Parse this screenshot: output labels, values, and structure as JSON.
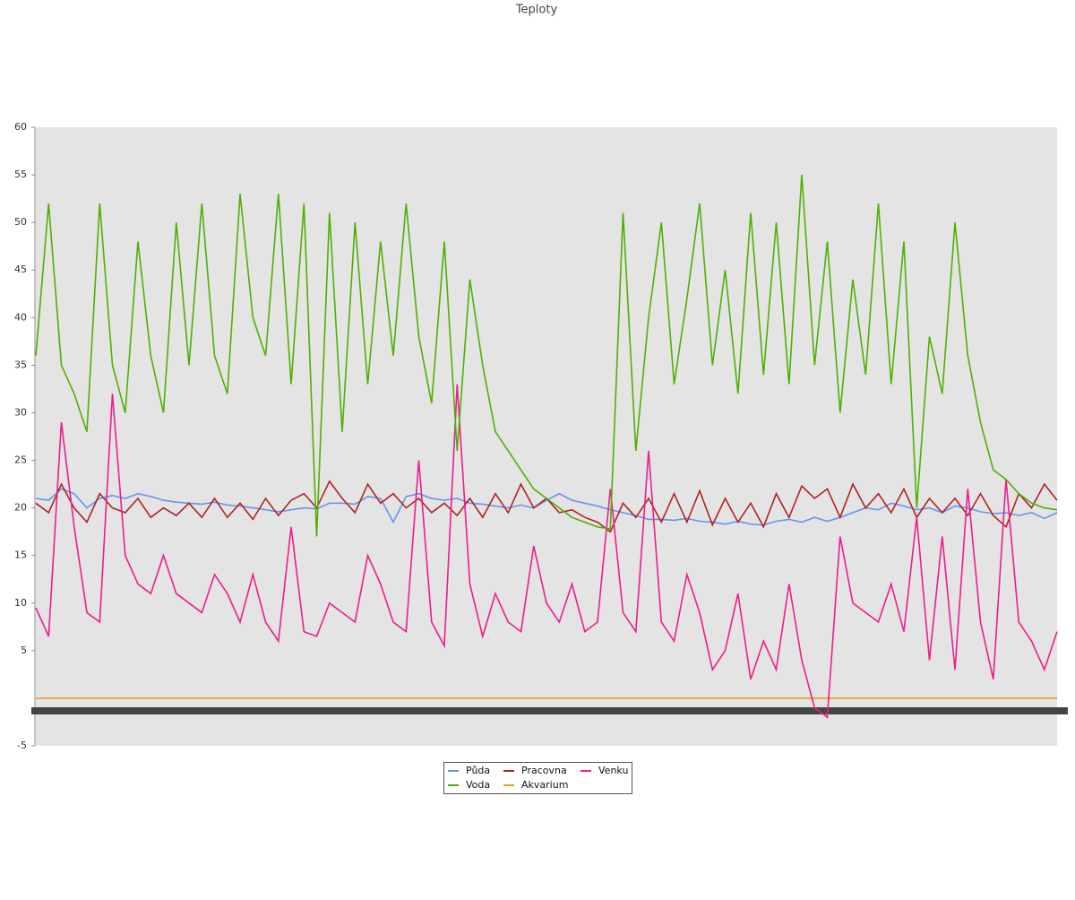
{
  "chart_data": {
    "type": "line",
    "title": "Teploty",
    "categories": [
      null,
      null,
      null,
      null,
      null,
      null,
      null,
      null,
      null,
      null,
      null,
      null,
      null,
      null,
      null,
      null,
      null,
      null,
      null,
      null,
      null,
      null,
      null,
      null,
      null,
      null,
      null,
      null,
      null,
      null,
      null,
      null,
      null,
      null,
      null,
      null,
      null,
      null,
      null,
      null,
      null,
      null,
      null,
      null,
      null,
      null,
      null,
      null,
      null,
      null,
      null,
      null,
      null,
      null,
      null,
      null,
      null,
      null,
      null,
      null,
      null,
      null,
      null,
      null,
      null,
      null,
      null,
      null,
      null,
      null,
      null,
      null,
      null,
      null,
      null,
      null,
      null,
      null,
      null,
      null,
      null
    ],
    "ylim": [
      -5,
      60
    ],
    "yticks": [
      -5,
      5,
      10,
      15,
      20,
      25,
      30,
      35,
      40,
      45,
      50,
      55,
      60
    ],
    "grid": false,
    "series": [
      {
        "name": "Půda",
        "color": "#6495ed",
        "values": [
          21,
          20.8,
          22,
          21.5,
          20,
          21,
          21.3,
          21,
          21.5,
          21.2,
          20.8,
          20.6,
          20.5,
          20.4,
          20.6,
          20.3,
          20.2,
          20,
          19.8,
          19.6,
          19.8,
          20,
          19.9,
          20.5,
          20.5,
          20.4,
          21.2,
          21,
          18.5,
          21.2,
          21.5,
          21,
          20.8,
          21,
          20.5,
          20.4,
          20.2,
          20,
          20.3,
          20,
          20.8,
          21.5,
          20.8,
          20.5,
          20.2,
          19.8,
          19.5,
          19.2,
          18.8,
          18.8,
          18.7,
          18.9,
          18.6,
          18.5,
          18.3,
          18.6,
          18.3,
          18.2,
          18.6,
          18.8,
          18.5,
          19,
          18.6,
          19,
          19.5,
          20,
          19.8,
          20.5,
          20.2,
          19.8,
          20,
          19.5,
          20.2,
          20,
          19.6,
          19.4,
          19.5,
          19.2,
          19.5,
          18.9,
          19.5
        ]
      },
      {
        "name": "Pracovna",
        "color": "#b22222",
        "values": [
          20.5,
          19.5,
          22.5,
          20,
          18.5,
          21.5,
          20,
          19.5,
          21,
          19,
          20,
          19.2,
          20.5,
          19,
          21,
          19,
          20.5,
          18.8,
          21,
          19.2,
          20.8,
          21.5,
          20,
          22.8,
          21,
          19.5,
          22.5,
          20.5,
          21.5,
          20,
          21,
          19.5,
          20.5,
          19.2,
          21,
          19,
          21.5,
          19.5,
          22.5,
          20,
          21,
          19.5,
          19.8,
          19,
          18.5,
          17.5,
          20.5,
          19,
          21,
          18.5,
          21.5,
          18.5,
          21.8,
          18.2,
          21,
          18.5,
          20.5,
          18,
          21.5,
          19,
          22.3,
          21,
          22,
          19,
          22.5,
          20,
          21.5,
          19.5,
          22,
          19,
          21,
          19.5,
          21,
          19.2,
          21.5,
          19.2,
          18,
          21.5,
          20,
          22.5,
          20.8
        ]
      },
      {
        "name": "Venku",
        "color": "#ee1c8e",
        "values": [
          9.5,
          6.5,
          29,
          18,
          9,
          8,
          32,
          15,
          12,
          11,
          15,
          11,
          10,
          9,
          13,
          11,
          8,
          13,
          8,
          6,
          18,
          7,
          6.5,
          10,
          9,
          8,
          15,
          12,
          8,
          7,
          25,
          8,
          5.5,
          33,
          12,
          6.5,
          11,
          8,
          7,
          16,
          10,
          8,
          12,
          7,
          8,
          22,
          9,
          7,
          26,
          8,
          6,
          13,
          9,
          3,
          5,
          11,
          2,
          6,
          3,
          12,
          4,
          -1,
          -2,
          17,
          10,
          9,
          8,
          12,
          7,
          19,
          4,
          17,
          3,
          22,
          8,
          2,
          23,
          8,
          6,
          3,
          7
        ]
      },
      {
        "name": "Voda",
        "color": "#4fb000",
        "values": [
          36,
          52,
          35,
          32,
          28,
          52,
          35,
          30,
          48,
          36,
          30,
          50,
          35,
          52,
          36,
          32,
          53,
          40,
          36,
          53,
          33,
          52,
          17,
          51,
          28,
          50,
          33,
          48,
          36,
          52,
          38,
          31,
          48,
          26,
          44,
          35,
          28,
          26,
          24,
          22,
          21,
          20,
          19,
          18.5,
          18,
          17.8,
          51,
          26,
          40,
          50,
          33,
          42,
          52,
          35,
          45,
          32,
          51,
          34,
          50,
          33,
          55,
          35,
          48,
          30,
          44,
          34,
          52,
          33,
          48,
          20,
          38,
          32,
          50,
          36,
          29,
          24,
          23,
          21.5,
          20.5,
          20,
          19.8
        ]
      },
      {
        "name": "Akvarium",
        "color": "#e8a020",
        "values": [
          0,
          0,
          0,
          0,
          0,
          0,
          0,
          0,
          0,
          0,
          0,
          0,
          0,
          0,
          0,
          0,
          0,
          0,
          0,
          0,
          0,
          0,
          0,
          0,
          0,
          0,
          0,
          0,
          0,
          0,
          0,
          0,
          0,
          0,
          0,
          0,
          0,
          0,
          0,
          0,
          0,
          0,
          0,
          0,
          0,
          0,
          0,
          0,
          0,
          0,
          0,
          0,
          0,
          0,
          0,
          0,
          0,
          0,
          0,
          0,
          0,
          0,
          0,
          0,
          0,
          0,
          0,
          0,
          0,
          0,
          0,
          0,
          0,
          0,
          0,
          0,
          0,
          0,
          0,
          0,
          0
        ]
      }
    ]
  }
}
